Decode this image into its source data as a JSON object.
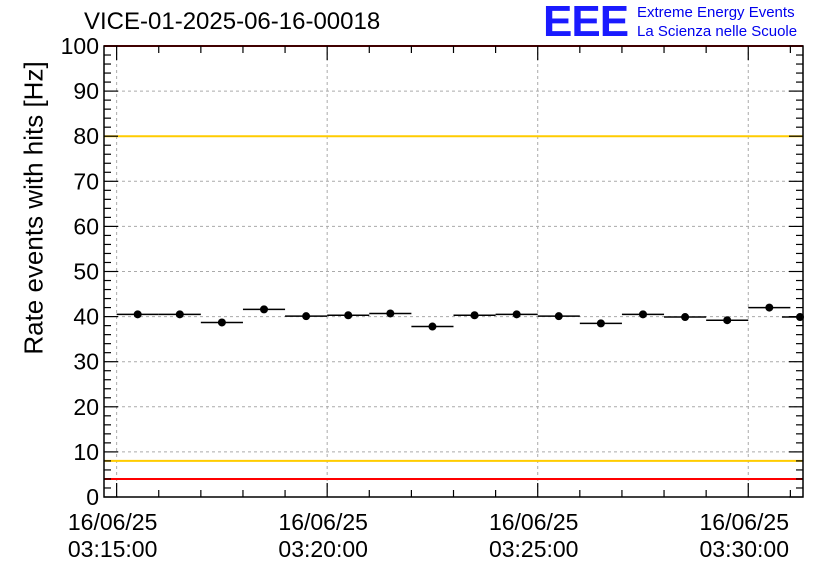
{
  "chart_data": {
    "type": "scatter",
    "title": "VICE-01-2025-06-16-00018",
    "xlabel": "",
    "ylabel": "Rate events with hits [Hz]",
    "ylim": [
      0,
      100
    ],
    "yticks": [
      0,
      10,
      20,
      30,
      40,
      50,
      60,
      70,
      80,
      90,
      100
    ],
    "x_unit": "minutes after 03:15:00",
    "xlim": [
      -0.3,
      16.3
    ],
    "xticks": [
      {
        "x": 0,
        "date": "16/06/25",
        "time": "03:15:00"
      },
      {
        "x": 5,
        "date": "16/06/25",
        "time": "03:20:00"
      },
      {
        "x": 10,
        "date": "16/06/25",
        "time": "03:25:00"
      },
      {
        "x": 15,
        "date": "16/06/25",
        "time": "03:30:00"
      }
    ],
    "bin_width_min": 1,
    "x": [
      0.5,
      1.5,
      2.5,
      3.5,
      4.5,
      5.5,
      6.5,
      7.5,
      8.5,
      9.5,
      10.5,
      11.5,
      12.5,
      13.5,
      14.5,
      15.5,
      16.3
    ],
    "values": [
      40.5,
      40.5,
      38.7,
      41.6,
      40.1,
      40.3,
      40.7,
      37.8,
      40.3,
      40.5,
      40.1,
      38.5,
      40.5,
      39.9,
      39.2,
      42.0,
      39.9
    ],
    "reference_lines": [
      {
        "y": 100,
        "color": "#ff0000"
      },
      {
        "y": 80,
        "color": "#ffcc00"
      },
      {
        "y": 8,
        "color": "#ffcc00"
      },
      {
        "y": 4,
        "color": "#ff0000"
      }
    ],
    "grid": true
  },
  "logo": {
    "mark": "EEE",
    "line1": "Extreme Energy Events",
    "line2": "La Scienza nelle Scuole"
  }
}
